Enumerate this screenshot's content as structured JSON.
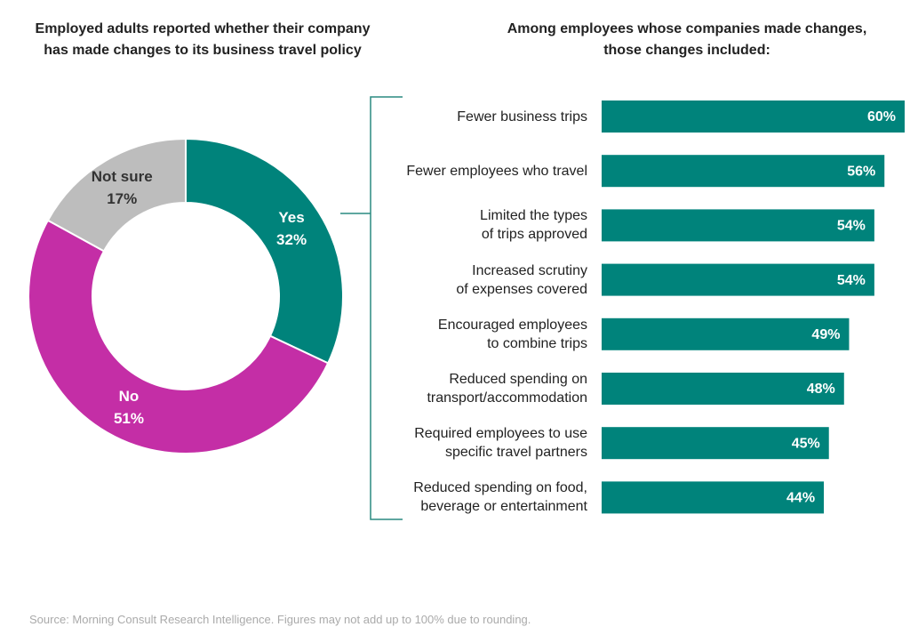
{
  "chart_data": [
    {
      "type": "donut",
      "title": "Employed adults reported whether their company\nhas made changes to its business travel policy",
      "categories": [
        "Yes",
        "No",
        "Not sure"
      ],
      "values": [
        32,
        51,
        17
      ],
      "value_labels": [
        "32%",
        "51%",
        "17%"
      ],
      "colors": [
        "#00837b",
        "#c42ea6",
        "#bdbdbd"
      ]
    },
    {
      "type": "hbar",
      "title": "Among employees whose companies made changes,\nthose changes included:",
      "categories": [
        "Fewer business trips",
        "Fewer employees who travel",
        "Limited the types\nof trips approved",
        "Increased scrutiny\nof expenses covered",
        "Encouraged employees\nto combine trips",
        "Reduced spending on\ntransport/accommodation",
        "Required employees to use\nspecific travel partners",
        "Reduced spending on food,\nbeverage or entertainment"
      ],
      "values": [
        60,
        56,
        54,
        54,
        49,
        48,
        45,
        44
      ],
      "value_labels": [
        "60%",
        "56%",
        "54%",
        "54%",
        "49%",
        "48%",
        "45%",
        "44%"
      ],
      "color": "#00837b"
    }
  ],
  "source": "Source: Morning Consult Research Intelligence. Figures may not add up to 100% due to rounding."
}
